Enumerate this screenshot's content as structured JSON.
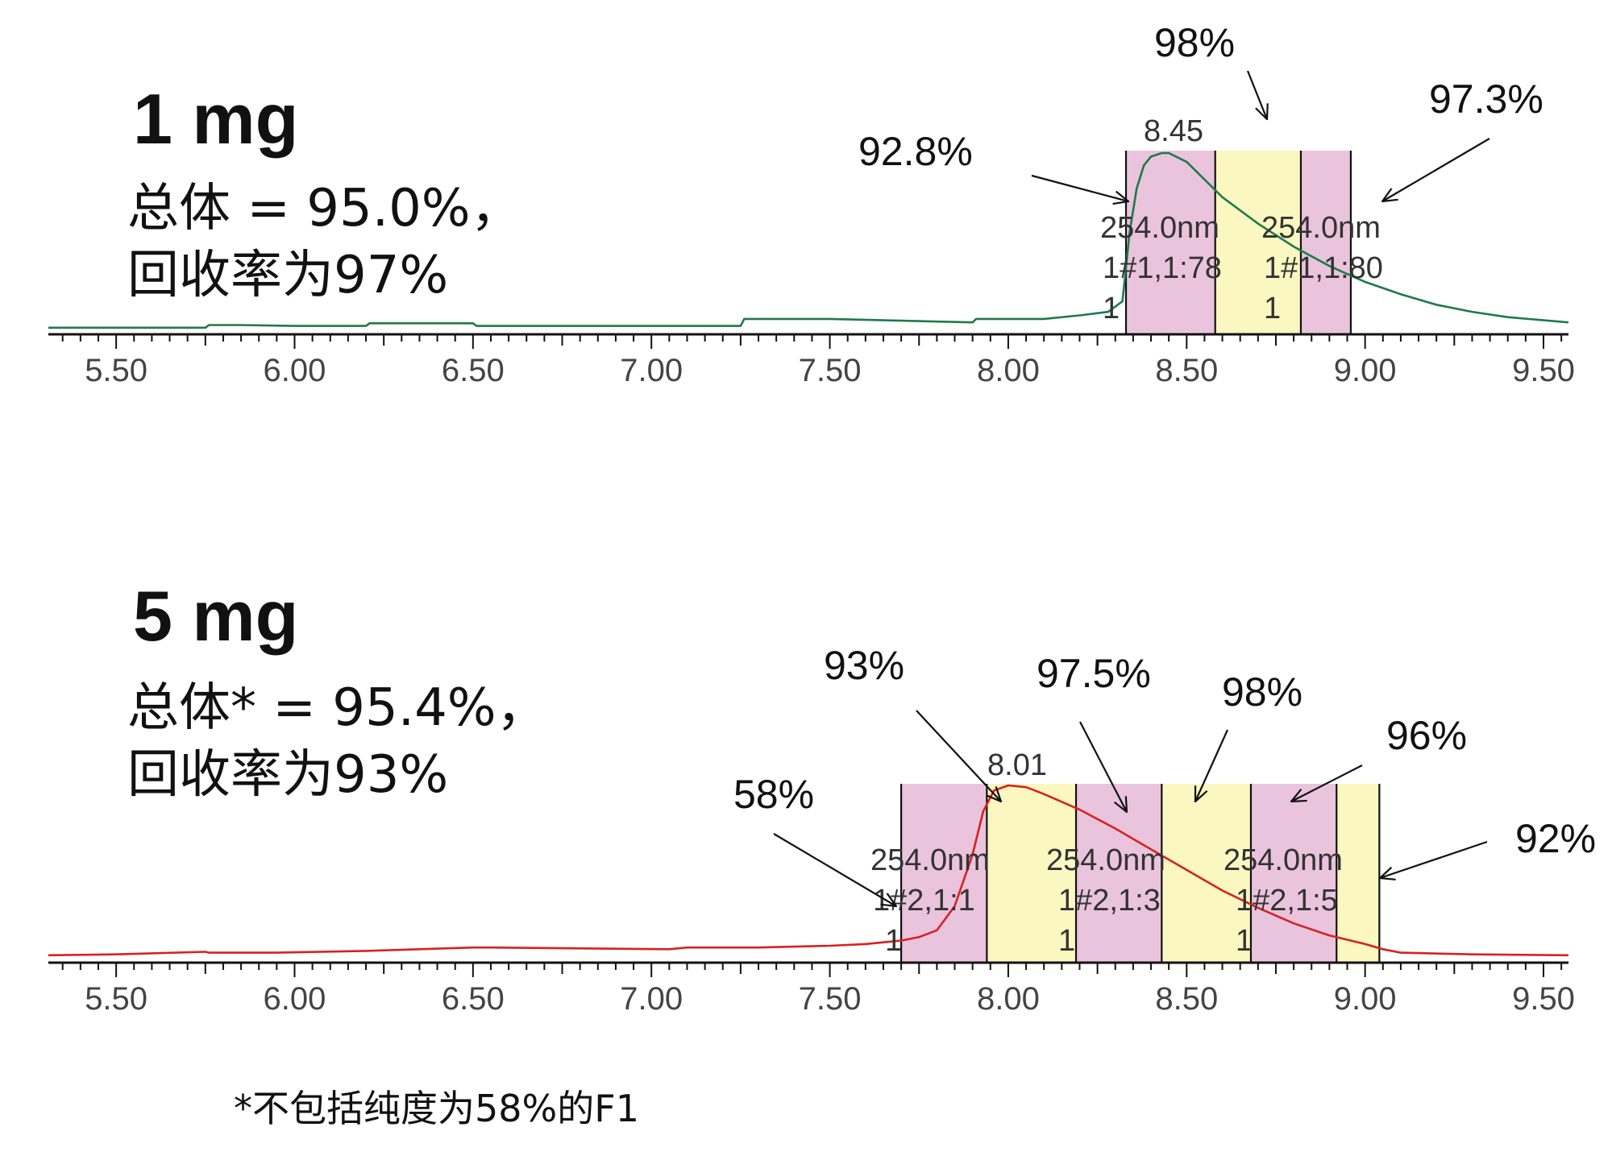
{
  "chart_data": [
    {
      "type": "line",
      "title": "1 mg",
      "summary_line1": "总体 = 95.0%，",
      "summary_line2": "回收率为97%",
      "xlim": [
        5.31,
        9.57
      ],
      "x_ticks": [
        "5.50",
        "6.00",
        "6.50",
        "7.00",
        "7.50",
        "8.00",
        "8.50",
        "9.00",
        "9.50"
      ],
      "line_color": "#1e7a4a",
      "peak_label": "8.45",
      "series": [
        {
          "x": [
            5.31,
            5.5,
            5.75,
            5.76,
            5.85,
            6.0,
            6.2,
            6.21,
            6.5,
            6.51,
            7.0,
            7.25,
            7.26,
            7.5,
            7.9,
            7.91,
            8.1,
            8.2,
            8.28,
            8.32,
            8.34,
            8.36,
            8.38,
            8.4,
            8.43,
            8.45,
            8.5,
            8.55,
            8.6,
            8.7,
            8.8,
            8.9,
            9.0,
            9.1,
            9.2,
            9.3,
            9.4,
            9.57
          ],
          "y": [
            0.01,
            0.01,
            0.01,
            0.025,
            0.025,
            0.02,
            0.02,
            0.035,
            0.035,
            0.02,
            0.02,
            0.02,
            0.06,
            0.06,
            0.04,
            0.06,
            0.06,
            0.08,
            0.1,
            0.16,
            0.55,
            0.8,
            0.93,
            0.98,
            1.0,
            1.0,
            0.95,
            0.85,
            0.75,
            0.6,
            0.47,
            0.36,
            0.27,
            0.2,
            0.14,
            0.1,
            0.07,
            0.04
          ]
        }
      ],
      "fractions": [
        {
          "start": 8.33,
          "end": 8.58,
          "color": "#eac4dc",
          "purity": "92.8%"
        },
        {
          "start": 8.58,
          "end": 8.82,
          "color": "#fbf7c1",
          "purity": "98%"
        },
        {
          "start": 8.82,
          "end": 8.96,
          "color": "#eac4dc",
          "purity": "97.3%"
        }
      ],
      "fraction_texts": [
        {
          "wavelength": "254.0nm",
          "id": "1#1,1:78",
          "tube": "1"
        },
        {
          "wavelength": "254.0nm",
          "id": "1#1,1:80",
          "tube": "1"
        }
      ]
    },
    {
      "type": "line",
      "title": "5 mg",
      "summary_line1": "总体* = 95.4%，",
      "summary_line2": "回收率为93%",
      "xlim": [
        5.31,
        9.57
      ],
      "x_ticks": [
        "5.50",
        "6.00",
        "6.50",
        "7.00",
        "7.50",
        "8.00",
        "8.50",
        "9.00",
        "9.50"
      ],
      "line_color": "#d62222",
      "peak_label": "8.01",
      "series": [
        {
          "x": [
            5.31,
            5.5,
            5.75,
            5.76,
            5.9,
            5.95,
            6.2,
            6.5,
            6.55,
            7.05,
            7.1,
            7.3,
            7.5,
            7.6,
            7.7,
            7.75,
            7.8,
            7.85,
            7.9,
            7.93,
            7.96,
            8.0,
            8.05,
            8.1,
            8.2,
            8.3,
            8.4,
            8.5,
            8.6,
            8.7,
            8.8,
            8.9,
            9.0,
            9.05,
            9.1,
            9.3,
            9.57
          ],
          "y": [
            0.015,
            0.02,
            0.035,
            0.03,
            0.03,
            0.03,
            0.04,
            0.06,
            0.06,
            0.05,
            0.06,
            0.06,
            0.07,
            0.08,
            0.1,
            0.12,
            0.16,
            0.3,
            0.6,
            0.85,
            0.97,
            1.0,
            0.99,
            0.95,
            0.86,
            0.75,
            0.63,
            0.51,
            0.39,
            0.29,
            0.2,
            0.13,
            0.08,
            0.05,
            0.03,
            0.02,
            0.015
          ]
        }
      ],
      "fractions": [
        {
          "start": 7.7,
          "end": 7.94,
          "color": "#eac4dc",
          "purity": "58%"
        },
        {
          "start": 7.94,
          "end": 8.19,
          "color": "#fbf7c1",
          "purity": "93%"
        },
        {
          "start": 8.19,
          "end": 8.43,
          "color": "#eac4dc",
          "purity": "97.5%"
        },
        {
          "start": 8.43,
          "end": 8.68,
          "color": "#fbf7c1",
          "purity": "98%"
        },
        {
          "start": 8.68,
          "end": 8.92,
          "color": "#eac4dc",
          "purity": "96%"
        },
        {
          "start": 8.92,
          "end": 9.04,
          "color": "#fbf7c1",
          "purity": "92%"
        }
      ],
      "fraction_texts": [
        {
          "wavelength": "254.0nm",
          "id": "1#2,1:1",
          "tube": "1"
        },
        {
          "wavelength": "254.0nm",
          "id": "1#2,1:3",
          "tube": "1"
        },
        {
          "wavelength": "254.0nm",
          "id": "1#2,1:5",
          "tube": "1"
        }
      ]
    }
  ],
  "footnote": "*不包括纯度为58%的F1"
}
